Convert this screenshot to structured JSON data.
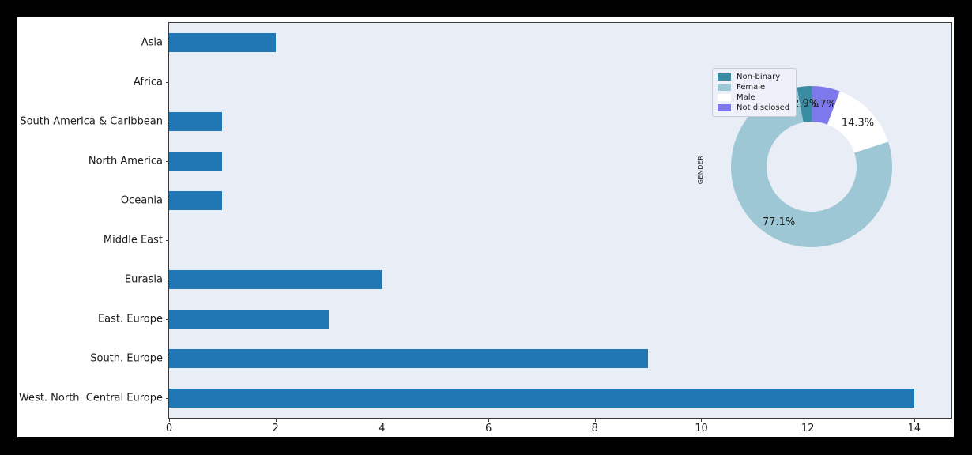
{
  "colors": {
    "outer_background": "#000000",
    "figure_background": "#ffffff",
    "plot_background": "#e9edf6",
    "spine": "#3a3a3a",
    "bar": "#2177b4",
    "text": "#1a1a1a",
    "legend_background": "#eef1f9",
    "legend_border": "#c9ccd4"
  },
  "chart_data": [
    {
      "type": "bar",
      "orientation": "horizontal",
      "title": "",
      "xlabel": "",
      "ylabel": "",
      "categories": [
        "Asia",
        "Africa",
        "South America & Caribbean",
        "North America",
        "Oceania",
        "Middle East",
        "Eurasia",
        "East. Europe",
        "South. Europe",
        "West. North. Central Europe"
      ],
      "values": [
        2,
        0,
        1,
        1,
        1,
        0,
        4,
        3,
        9,
        14
      ],
      "xlim": [
        0,
        14.7
      ],
      "xticks": [
        0,
        2,
        4,
        6,
        8,
        10,
        12,
        14
      ],
      "grid": false,
      "bar_color": "#2177b4"
    },
    {
      "type": "pie",
      "donut": true,
      "title": "GENDER",
      "start_angle_deg_clockwise_from_top": 0,
      "slices": [
        {
          "label": "Not disclosed",
          "pct": 5.7,
          "pct_label": "5.7%",
          "color": "#7d78eb"
        },
        {
          "label": "Male",
          "pct": 14.3,
          "pct_label": "14.3%",
          "color": "#ffffff"
        },
        {
          "label": "Female",
          "pct": 77.1,
          "pct_label": "77.1%",
          "color": "#9dc7d5"
        },
        {
          "label": "Non-binary",
          "pct": 2.9,
          "pct_label": "2.9%",
          "color": "#3a8ca3"
        }
      ],
      "legend": {
        "position": "upper-left",
        "entries": [
          "Non-binary",
          "Female",
          "Male",
          "Not disclosed"
        ]
      }
    }
  ]
}
